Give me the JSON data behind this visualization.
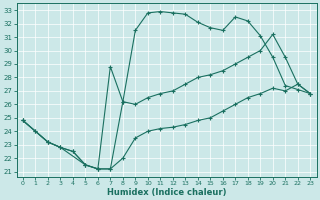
{
  "bg_color": "#cce8e8",
  "line_color": "#1a7060",
  "xlabel": "Humidex (Indice chaleur)",
  "xlim": [
    -0.5,
    23.5
  ],
  "ylim": [
    20.6,
    33.5
  ],
  "xticks": [
    0,
    1,
    2,
    3,
    4,
    5,
    6,
    7,
    8,
    9,
    10,
    11,
    12,
    13,
    14,
    15,
    16,
    17,
    18,
    19,
    20,
    21,
    22,
    23
  ],
  "yticks": [
    21,
    22,
    23,
    24,
    25,
    26,
    27,
    28,
    29,
    30,
    31,
    32,
    33
  ],
  "line1_x": [
    0,
    1,
    2,
    3,
    4,
    5,
    6,
    7,
    8,
    9,
    10,
    11,
    12,
    13,
    14,
    15,
    16,
    17,
    18,
    19,
    20,
    21,
    22,
    23
  ],
  "line1_y": [
    24.8,
    24.0,
    23.2,
    22.8,
    22.5,
    21.5,
    21.2,
    21.2,
    26.2,
    31.5,
    32.8,
    32.9,
    32.8,
    32.7,
    32.1,
    31.7,
    31.5,
    32.5,
    32.2,
    31.1,
    29.5,
    27.4,
    27.1,
    26.8
  ],
  "line2_x": [
    0,
    2,
    3,
    5,
    6,
    7,
    8,
    9,
    10,
    11,
    12,
    13,
    14,
    15,
    16,
    17,
    18,
    19,
    20,
    21,
    22,
    23
  ],
  "line2_y": [
    24.8,
    23.2,
    22.8,
    21.5,
    21.2,
    28.8,
    26.2,
    26.0,
    26.5,
    26.8,
    27.0,
    27.5,
    28.0,
    28.2,
    28.5,
    29.0,
    29.5,
    30.0,
    31.2,
    29.5,
    27.5,
    26.8
  ],
  "line3_x": [
    0,
    1,
    2,
    3,
    4,
    5,
    6,
    7,
    8,
    9,
    10,
    11,
    12,
    13,
    14,
    15,
    16,
    17,
    18,
    19,
    20,
    21,
    22,
    23
  ],
  "line3_y": [
    24.8,
    24.0,
    23.2,
    22.8,
    22.5,
    21.5,
    21.2,
    21.2,
    22.0,
    23.5,
    24.0,
    24.2,
    24.3,
    24.5,
    24.8,
    25.0,
    25.5,
    26.0,
    26.5,
    26.8,
    27.2,
    27.0,
    27.5,
    26.8
  ]
}
